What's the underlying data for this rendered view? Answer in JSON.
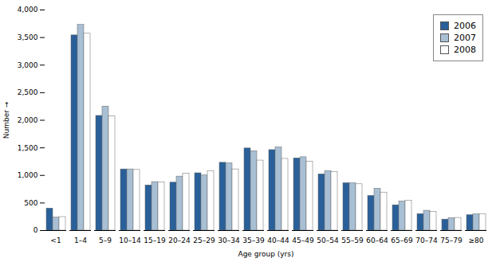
{
  "chart_data": {
    "type": "bar",
    "xlabel": "Age group (yrs)",
    "ylabel": "Number",
    "categories": [
      "<1",
      "1–4",
      "5–9",
      "10–14",
      "15–19",
      "20–24",
      "25–29",
      "30–34",
      "35–39",
      "40–44",
      "45–49",
      "50–54",
      "55–59",
      "60–64",
      "65–69",
      "70–74",
      "75–79",
      "≥80"
    ],
    "series": [
      {
        "name": "2006",
        "color": "#2a6099",
        "values": [
          400,
          3540,
          2080,
          1110,
          820,
          870,
          1040,
          1230,
          1490,
          1460,
          1310,
          1020,
          860,
          630,
          460,
          300,
          200,
          280
        ]
      },
      {
        "name": "2007",
        "color": "#a8bfd4",
        "values": [
          235,
          3730,
          2250,
          1110,
          880,
          980,
          1000,
          1220,
          1440,
          1510,
          1330,
          1080,
          860,
          760,
          530,
          360,
          225,
          295
        ]
      },
      {
        "name": "2008",
        "color": "#ffffff",
        "values": [
          245,
          3570,
          2070,
          1100,
          875,
          1030,
          1080,
          1110,
          1270,
          1300,
          1250,
          1060,
          840,
          690,
          540,
          340,
          230,
          300
        ]
      }
    ],
    "ylim": [
      0,
      4000
    ],
    "yticks": [
      0,
      500,
      {
        "value": 1000,
        "label": "1,000"
      },
      {
        "value": 1500,
        "label": "1,500"
      },
      {
        "value": 2000,
        "label": "2,000"
      },
      {
        "value": 2500,
        "label": "2,500"
      },
      {
        "value": 3000,
        "label": "3,000"
      },
      {
        "value": 3500,
        "label": "3,500"
      },
      {
        "value": 4000,
        "label": "4,000"
      }
    ],
    "grid": false,
    "legend": "upper right"
  }
}
